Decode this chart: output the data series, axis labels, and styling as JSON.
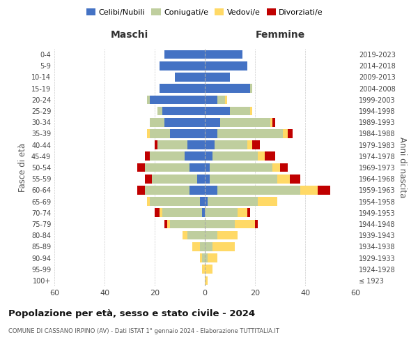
{
  "age_groups": [
    "100+",
    "95-99",
    "90-94",
    "85-89",
    "80-84",
    "75-79",
    "70-74",
    "65-69",
    "60-64",
    "55-59",
    "50-54",
    "45-49",
    "40-44",
    "35-39",
    "30-34",
    "25-29",
    "20-24",
    "15-19",
    "10-14",
    "5-9",
    "0-4"
  ],
  "birth_years": [
    "≤ 1923",
    "1924-1928",
    "1929-1933",
    "1934-1938",
    "1939-1943",
    "1944-1948",
    "1949-1953",
    "1954-1958",
    "1959-1963",
    "1964-1968",
    "1969-1973",
    "1974-1978",
    "1979-1983",
    "1984-1988",
    "1989-1993",
    "1994-1998",
    "1999-2003",
    "2004-2008",
    "2009-2013",
    "2014-2018",
    "2019-2023"
  ],
  "male": {
    "celibi": [
      0,
      0,
      0,
      0,
      0,
      0,
      1,
      2,
      6,
      3,
      6,
      8,
      7,
      14,
      16,
      17,
      22,
      18,
      12,
      18,
      16
    ],
    "coniugati": [
      0,
      0,
      1,
      2,
      7,
      14,
      16,
      20,
      18,
      18,
      18,
      14,
      12,
      8,
      6,
      2,
      1,
      0,
      0,
      0,
      0
    ],
    "vedovi": [
      0,
      1,
      1,
      3,
      2,
      1,
      1,
      1,
      0,
      0,
      0,
      0,
      0,
      1,
      0,
      0,
      0,
      0,
      0,
      0,
      0
    ],
    "divorziati": [
      0,
      0,
      0,
      0,
      0,
      1,
      2,
      0,
      3,
      3,
      3,
      2,
      1,
      0,
      0,
      0,
      0,
      0,
      0,
      0,
      0
    ]
  },
  "female": {
    "nubili": [
      0,
      0,
      0,
      0,
      0,
      0,
      0,
      1,
      5,
      2,
      2,
      3,
      4,
      5,
      6,
      10,
      5,
      18,
      10,
      17,
      15
    ],
    "coniugate": [
      0,
      0,
      1,
      3,
      5,
      12,
      13,
      20,
      33,
      27,
      25,
      18,
      13,
      26,
      20,
      8,
      3,
      1,
      0,
      0,
      0
    ],
    "vedove": [
      1,
      3,
      4,
      9,
      8,
      8,
      4,
      8,
      7,
      5,
      3,
      3,
      2,
      2,
      1,
      1,
      1,
      0,
      0,
      0,
      0
    ],
    "divorziate": [
      0,
      0,
      0,
      0,
      0,
      1,
      1,
      0,
      5,
      4,
      3,
      4,
      3,
      2,
      1,
      0,
      0,
      0,
      0,
      0,
      0
    ]
  },
  "colors": {
    "celibi": "#4472C4",
    "coniugati": "#BFCE9E",
    "vedovi": "#FFD966",
    "divorziati": "#C00000"
  },
  "xlim": 60,
  "title": "Popolazione per età, sesso e stato civile - 2024",
  "subtitle": "COMUNE DI CASSANO IRPINO (AV) - Dati ISTAT 1° gennaio 2024 - Elaborazione TUTTITALIA.IT",
  "ylabel_left": "Fasce di età",
  "ylabel_right": "Anni di nascita",
  "xlabel_left": "Maschi",
  "xlabel_right": "Femmine"
}
